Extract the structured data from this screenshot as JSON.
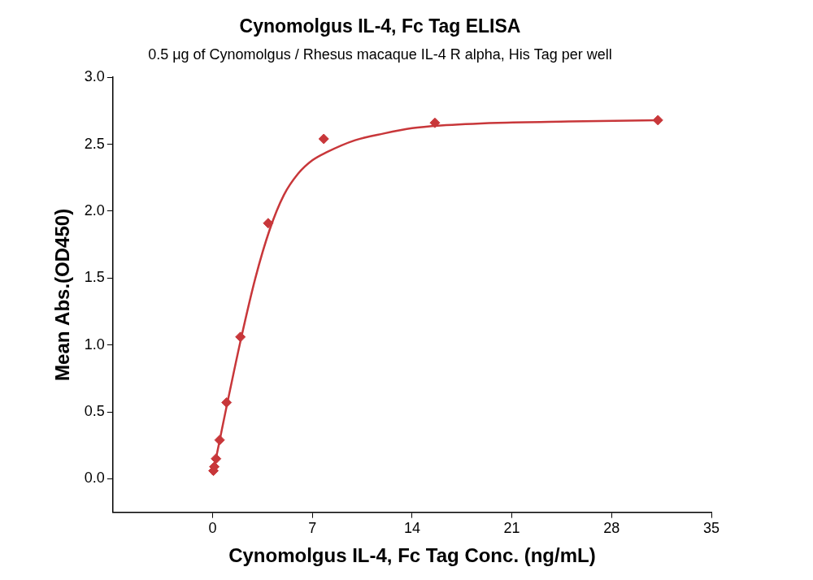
{
  "chart_data": {
    "type": "scatter",
    "title": "Cynomolgus IL-4, Fc Tag ELISA",
    "subtitle": "0.5 μg of Cynomolgus / Rhesus macaque IL-4 R alpha, His Tag per well",
    "x_label": "Cynomolgus IL-4, Fc Tag Conc. (ng/mL)",
    "y_label": "Mean Abs.(OD450)",
    "xlim": [
      -7,
      35
    ],
    "xticks": [
      0,
      7,
      14,
      21,
      28,
      35
    ],
    "ylim": [
      -0.25,
      3.0
    ],
    "yticks": [
      {
        "value": 0,
        "label": "0.0"
      },
      0.5,
      {
        "value": 1,
        "label": "1.0"
      },
      1.5,
      {
        "value": 2,
        "label": "2.0"
      },
      2.5,
      {
        "value": 3,
        "label": "3.0"
      }
    ],
    "grid": false,
    "series": [
      {
        "type": "scatter",
        "marker": "diamond",
        "color": "#c8373a",
        "x": [
          0.06,
          0.12,
          0.24,
          0.49,
          0.98,
          1.95,
          3.9,
          7.8,
          15.6,
          31.25
        ],
        "values": [
          0.06,
          0.09,
          0.15,
          0.29,
          0.57,
          1.06,
          1.91,
          2.54,
          2.66,
          2.68
        ]
      },
      {
        "type": "line",
        "line_style": "solid",
        "color": "#c8373a",
        "x": [
          0,
          0.5,
          1,
          2,
          3,
          4,
          5,
          6,
          7,
          8,
          10,
          12,
          14,
          16,
          20,
          25,
          31.25
        ],
        "values": [
          0.03,
          0.29,
          0.55,
          1.05,
          1.5,
          1.86,
          2.12,
          2.28,
          2.38,
          2.44,
          2.53,
          2.58,
          2.62,
          2.64,
          2.66,
          2.67,
          2.68
        ]
      }
    ]
  }
}
